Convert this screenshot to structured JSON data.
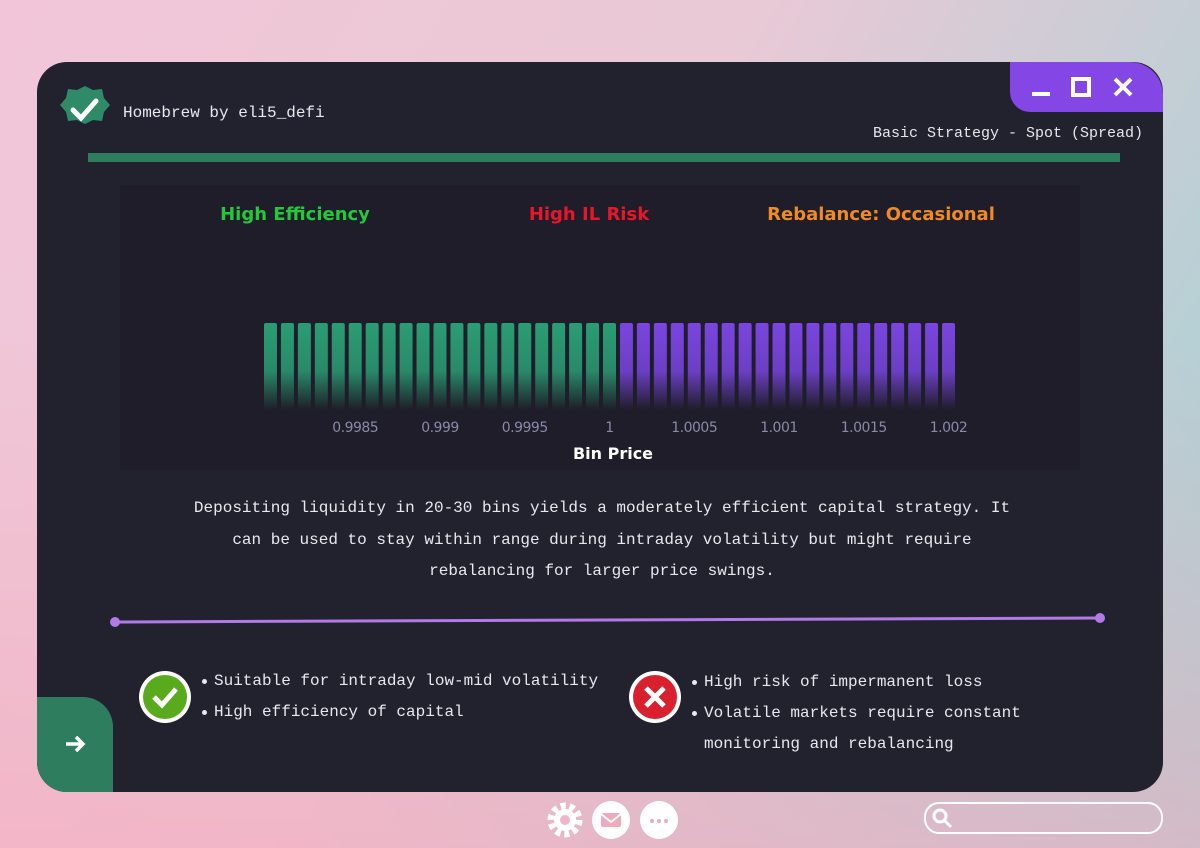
{
  "header": {
    "title": "Homebrew by eli5_defi",
    "subtitle": "Basic Strategy - Spot (Spread)"
  },
  "tags": [
    {
      "text": "High Efficiency",
      "color": "#22c93a"
    },
    {
      "text": "High IL Risk",
      "color": "#e8162a"
    },
    {
      "text": "Rebalance: Occasional",
      "color": "#f08a24"
    }
  ],
  "chart_data": {
    "type": "bar",
    "xlabel": "Bin Price",
    "xlim": [
      0.99795,
      1.00205
    ],
    "xticks": [
      0.9985,
      0.999,
      0.9995,
      1,
      1.0005,
      1.001,
      1.0015,
      1.002
    ],
    "ylim": [
      0,
      1
    ],
    "series": [
      {
        "color": "#2a9d74",
        "x": [
          0.998,
          0.9981,
          0.9982,
          0.9983,
          0.9984,
          0.9985,
          0.9986,
          0.9987,
          0.9988,
          0.9989,
          0.999,
          0.9991,
          0.9992,
          0.9993,
          0.9994,
          0.9995,
          0.9996,
          0.9997,
          0.9998,
          0.9999,
          1
        ],
        "values": [
          1,
          1,
          1,
          1,
          1,
          1,
          1,
          1,
          1,
          1,
          1,
          1,
          1,
          1,
          1,
          1,
          1,
          1,
          1,
          1,
          1
        ]
      },
      {
        "color": "#7a45e0",
        "x": [
          1.0001,
          1.0002,
          1.0003,
          1.0004,
          1.0005,
          1.0006,
          1.0007,
          1.0008,
          1.0009,
          1.001,
          1.0011,
          1.0012,
          1.0013,
          1.0014,
          1.0015,
          1.0016,
          1.0017,
          1.0018,
          1.0019,
          1.002
        ],
        "values": [
          1,
          1,
          1,
          1,
          1,
          1,
          1,
          1,
          1,
          1,
          1,
          1,
          1,
          1,
          1,
          1,
          1,
          1,
          1,
          1
        ]
      }
    ]
  },
  "description": "Depositing liquidity in 20-30 bins yields a moderately efficient capital strategy. It can be used to stay within range during intraday volatility but might require rebalancing for larger price swings.",
  "pros": [
    "Suitable for intraday low-mid volatility",
    "High efficiency of capital"
  ],
  "cons": [
    "High risk of impermanent loss",
    "Volatile markets require constant monitoring and rebalancing"
  ]
}
